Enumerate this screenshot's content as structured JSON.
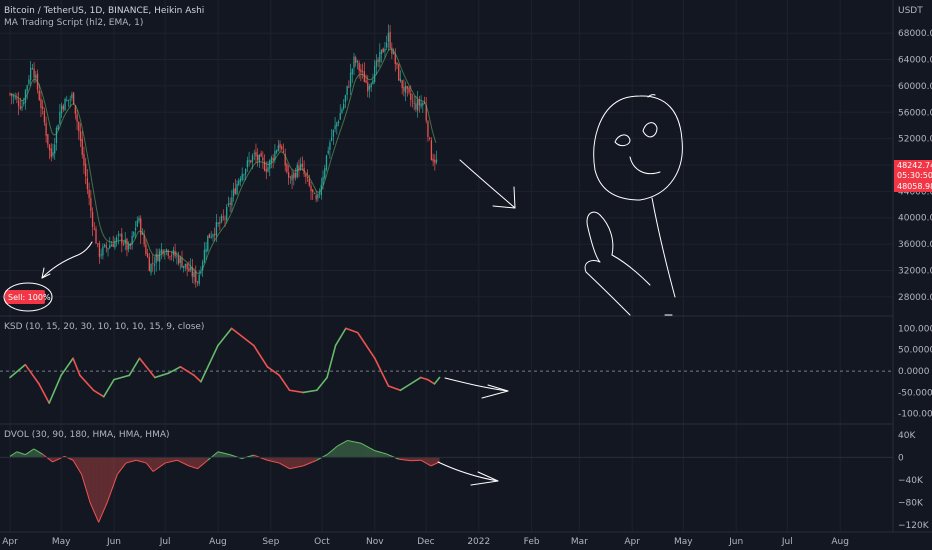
{
  "header": {
    "symbol_line": "Bitcoin / TetherUS, 1D, BINANCE, Heikin Ashi",
    "indicator_line": "MA Trading Script (hl2, EMA, 1)",
    "currency": "USDT"
  },
  "price_badges": {
    "current": "48242.74",
    "countdown": "05:30:50",
    "low": "48058.98"
  },
  "sell_badge": "Sell: 100%",
  "colors": {
    "background": "#131722",
    "up": "#26a69a",
    "down": "#ef5350",
    "bull_line": "#66bb6a",
    "badge": "#f23645",
    "text": "#b2b5be"
  },
  "chart_data": [
    {
      "type": "candlestick",
      "panel": "price",
      "price_axis_ticks": [
        "68000.00",
        "64000.00",
        "60000.00",
        "56000.00",
        "52000.00",
        "48000.00",
        "44000.00",
        "40000.00",
        "36000.00",
        "32000.00",
        "28000.00"
      ],
      "ylim": [
        26000,
        70000
      ],
      "x_months": [
        "Apr",
        "May",
        "Jun",
        "Jul",
        "Aug",
        "Sep",
        "Oct",
        "Nov",
        "Dec",
        "2022",
        "Feb",
        "Mar",
        "Apr",
        "May",
        "Jun",
        "Jul",
        "Aug"
      ],
      "close_path": [
        [
          "2021-04-01",
          58800
        ],
        [
          "2021-04-08",
          57000
        ],
        [
          "2021-04-14",
          63500
        ],
        [
          "2021-04-20",
          56000
        ],
        [
          "2021-04-25",
          49000
        ],
        [
          "2021-05-01",
          57000
        ],
        [
          "2021-05-08",
          58500
        ],
        [
          "2021-05-12",
          52000
        ],
        [
          "2021-05-19",
          40000
        ],
        [
          "2021-05-23",
          34500
        ],
        [
          "2021-05-30",
          36000
        ],
        [
          "2021-06-05",
          37000
        ],
        [
          "2021-06-10",
          35000
        ],
        [
          "2021-06-15",
          40000
        ],
        [
          "2021-06-22",
          32500
        ],
        [
          "2021-06-30",
          35500
        ],
        [
          "2021-07-08",
          34000
        ],
        [
          "2021-07-15",
          32000
        ],
        [
          "2021-07-20",
          30500
        ],
        [
          "2021-07-26",
          37000
        ],
        [
          "2021-08-05",
          40000
        ],
        [
          "2021-08-14",
          46500
        ],
        [
          "2021-08-22",
          49500
        ],
        [
          "2021-08-30",
          47500
        ],
        [
          "2021-09-06",
          51500
        ],
        [
          "2021-09-12",
          45500
        ],
        [
          "2021-09-18",
          48000
        ],
        [
          "2021-09-28",
          42000
        ],
        [
          "2021-10-05",
          51000
        ],
        [
          "2021-10-14",
          57500
        ],
        [
          "2021-10-20",
          64000
        ],
        [
          "2021-10-28",
          60000
        ],
        [
          "2021-11-02",
          63000
        ],
        [
          "2021-11-09",
          67500
        ],
        [
          "2021-11-16",
          60500
        ],
        [
          "2021-11-24",
          57000
        ],
        [
          "2021-11-30",
          57500
        ],
        [
          "2021-12-04",
          49500
        ],
        [
          "2021-12-08",
          48200
        ]
      ],
      "series": [
        {
          "name": "MA Trading Script (hl2, EMA, 1)"
        }
      ]
    },
    {
      "type": "line",
      "panel": "oscillator",
      "title": "KSD (10, 15, 20, 30, 10, 10, 10, 15, 9, close)",
      "y_ticks": [
        "100.0000",
        "50.0000",
        "0.0000",
        "-50.0000",
        "-100.0000"
      ],
      "ylim": [
        -110,
        115
      ],
      "zero_line": 0,
      "values": [
        [
          "2021-04-01",
          -15
        ],
        [
          "2021-04-10",
          15
        ],
        [
          "2021-04-18",
          -30
        ],
        [
          "2021-04-24",
          -75
        ],
        [
          "2021-05-01",
          -10
        ],
        [
          "2021-05-08",
          30
        ],
        [
          "2021-05-12",
          -10
        ],
        [
          "2021-05-20",
          -45
        ],
        [
          "2021-05-26",
          -60
        ],
        [
          "2021-06-01",
          -20
        ],
        [
          "2021-06-10",
          -10
        ],
        [
          "2021-06-16",
          30
        ],
        [
          "2021-06-25",
          -15
        ],
        [
          "2021-07-03",
          -5
        ],
        [
          "2021-07-10",
          10
        ],
        [
          "2021-07-18",
          -10
        ],
        [
          "2021-07-22",
          -25
        ],
        [
          "2021-08-01",
          60
        ],
        [
          "2021-08-09",
          100
        ],
        [
          "2021-08-22",
          60
        ],
        [
          "2021-08-30",
          10
        ],
        [
          "2021-09-06",
          -10
        ],
        [
          "2021-09-12",
          -45
        ],
        [
          "2021-09-20",
          -50
        ],
        [
          "2021-09-28",
          -45
        ],
        [
          "2021-10-04",
          -15
        ],
        [
          "2021-10-09",
          60
        ],
        [
          "2021-10-15",
          100
        ],
        [
          "2021-10-22",
          90
        ],
        [
          "2021-11-01",
          30
        ],
        [
          "2021-11-09",
          -35
        ],
        [
          "2021-11-16",
          -45
        ],
        [
          "2021-11-22",
          -30
        ],
        [
          "2021-11-28",
          -15
        ],
        [
          "2021-12-02",
          -20
        ],
        [
          "2021-12-06",
          -30
        ],
        [
          "2021-12-09",
          -15
        ]
      ]
    },
    {
      "type": "area",
      "panel": "volume_oscillator",
      "title": "DVOL (30, 90, 180, HMA, HMA, HMA)",
      "y_ticks": [
        "40K",
        "0",
        "−40K",
        "−80K",
        "−120K"
      ],
      "ylim": [
        -125000,
        45000
      ],
      "values": [
        [
          "2021-04-01",
          2000
        ],
        [
          "2021-04-05",
          10000
        ],
        [
          "2021-04-10",
          5000
        ],
        [
          "2021-04-15",
          15000
        ],
        [
          "2021-04-20",
          6000
        ],
        [
          "2021-04-26",
          -8000
        ],
        [
          "2021-05-03",
          2000
        ],
        [
          "2021-05-08",
          -5000
        ],
        [
          "2021-05-13",
          -30000
        ],
        [
          "2021-05-18",
          -80000
        ],
        [
          "2021-05-23",
          -115000
        ],
        [
          "2021-05-28",
          -80000
        ],
        [
          "2021-06-03",
          -30000
        ],
        [
          "2021-06-08",
          -10000
        ],
        [
          "2021-06-14",
          -5000
        ],
        [
          "2021-06-20",
          -10000
        ],
        [
          "2021-06-24",
          -25000
        ],
        [
          "2021-07-01",
          -10000
        ],
        [
          "2021-07-08",
          -5000
        ],
        [
          "2021-07-15",
          -15000
        ],
        [
          "2021-07-20",
          -20000
        ],
        [
          "2021-07-26",
          -5000
        ],
        [
          "2021-08-01",
          10000
        ],
        [
          "2021-08-08",
          5000
        ],
        [
          "2021-08-15",
          -2000
        ],
        [
          "2021-08-22",
          4000
        ],
        [
          "2021-08-30",
          -5000
        ],
        [
          "2021-09-06",
          -10000
        ],
        [
          "2021-09-12",
          -20000
        ],
        [
          "2021-09-20",
          -15000
        ],
        [
          "2021-09-28",
          -5000
        ],
        [
          "2021-10-04",
          5000
        ],
        [
          "2021-10-10",
          20000
        ],
        [
          "2021-10-16",
          30000
        ],
        [
          "2021-10-24",
          25000
        ],
        [
          "2021-11-01",
          12000
        ],
        [
          "2021-11-08",
          6000
        ],
        [
          "2021-11-15",
          -3000
        ],
        [
          "2021-11-22",
          -6000
        ],
        [
          "2021-11-28",
          -5000
        ],
        [
          "2021-12-04",
          -15000
        ],
        [
          "2021-12-09",
          -8000
        ]
      ]
    }
  ]
}
